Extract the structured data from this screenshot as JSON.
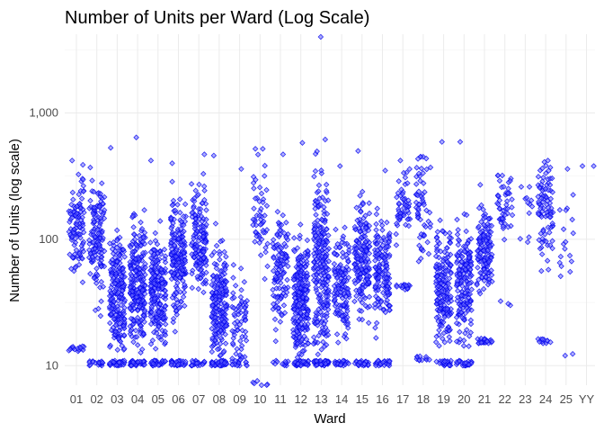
{
  "chart_data": {
    "type": "scatter",
    "title": "Number of Units per Ward (Log Scale)",
    "xlabel": "Ward",
    "ylabel": "Number of Units (log scale)",
    "y_scale": "log",
    "ylim": [
      7,
      4200
    ],
    "yticks": [
      10,
      100,
      1000
    ],
    "ytick_labels": [
      "10",
      "100",
      "1,000"
    ],
    "grid": true,
    "legend": "none",
    "point_fill": "#6b6bff",
    "point_stroke": "#0000ee",
    "point_shape": "diamond",
    "categories": [
      "01",
      "02",
      "03",
      "04",
      "05",
      "06",
      "07",
      "08",
      "09",
      "10",
      "11",
      "12",
      "13",
      "14",
      "15",
      "16",
      "17",
      "18",
      "19",
      "20",
      "21",
      "22",
      "23",
      "24",
      "25",
      "YY"
    ],
    "series": [
      {
        "ward": "01",
        "min": 13,
        "max": 420,
        "n": 120,
        "peak": 130
      },
      {
        "ward": "02",
        "min": 10,
        "max": 370,
        "n": 150,
        "peak": 110
      },
      {
        "ward": "03",
        "min": 10,
        "max": 530,
        "n": 240,
        "peak": 35
      },
      {
        "ward": "04",
        "min": 10,
        "max": 640,
        "n": 260,
        "peak": 45
      },
      {
        "ward": "05",
        "min": 10,
        "max": 420,
        "n": 230,
        "peak": 40
      },
      {
        "ward": "06",
        "min": 10,
        "max": 400,
        "n": 220,
        "peak": 70
      },
      {
        "ward": "07",
        "min": 10,
        "max": 470,
        "n": 170,
        "peak": 100
      },
      {
        "ward": "08",
        "min": 10,
        "max": 460,
        "n": 230,
        "peak": 30
      },
      {
        "ward": "09",
        "min": 10,
        "max": 360,
        "n": 80,
        "peak": 22
      },
      {
        "ward": "10",
        "min": 7,
        "max": 520,
        "n": 60,
        "peak": 150
      },
      {
        "ward": "11",
        "min": 10,
        "max": 470,
        "n": 130,
        "peak": 60
      },
      {
        "ward": "12",
        "min": 10,
        "max": 580,
        "n": 270,
        "peak": 35
      },
      {
        "ward": "13",
        "min": 10,
        "max": 4000,
        "n": 280,
        "peak": 60
      },
      {
        "ward": "14",
        "min": 10,
        "max": 380,
        "n": 160,
        "peak": 45
      },
      {
        "ward": "15",
        "min": 10,
        "max": 500,
        "n": 200,
        "peak": 70
      },
      {
        "ward": "16",
        "min": 10,
        "max": 350,
        "n": 170,
        "peak": 60
      },
      {
        "ward": "17",
        "min": 40,
        "max": 420,
        "n": 70,
        "peak": 180
      },
      {
        "ward": "18",
        "min": 11,
        "max": 450,
        "n": 70,
        "peak": 200
      },
      {
        "ward": "19",
        "min": 10,
        "max": 590,
        "n": 200,
        "peak": 40
      },
      {
        "ward": "20",
        "min": 10,
        "max": 590,
        "n": 190,
        "peak": 45
      },
      {
        "ward": "21",
        "min": 15,
        "max": 270,
        "n": 150,
        "peak": 80
      },
      {
        "ward": "22",
        "min": 30,
        "max": 320,
        "n": 50,
        "peak": 200
      },
      {
        "ward": "23",
        "min": 95,
        "max": 260,
        "n": 12,
        "peak": 200
      },
      {
        "ward": "24",
        "min": 15,
        "max": 420,
        "n": 100,
        "peak": 180
      },
      {
        "ward": "25",
        "min": 12,
        "max": 360,
        "n": 20,
        "peak": 100
      },
      {
        "ward": "YY",
        "min": 380,
        "max": 380,
        "n": 1,
        "peak": 380
      }
    ]
  }
}
